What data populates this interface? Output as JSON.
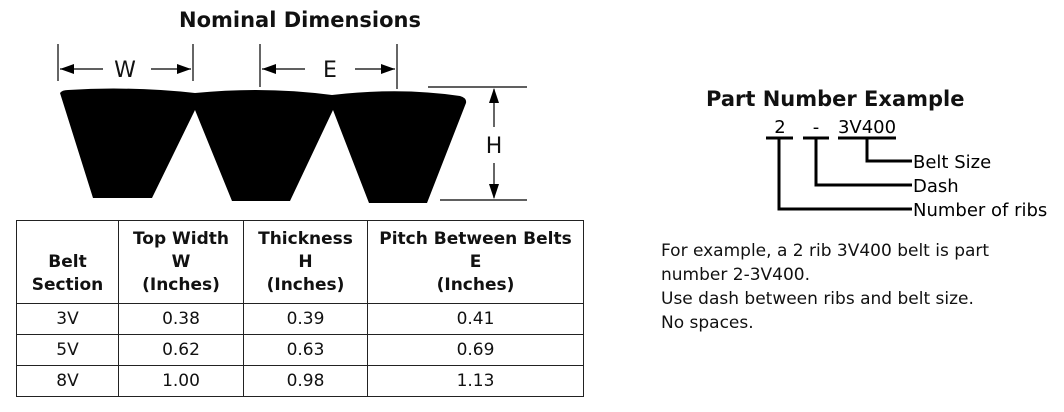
{
  "diagram": {
    "title": "Nominal Dimensions",
    "labels": {
      "w": "W",
      "e": "E",
      "h": "H"
    }
  },
  "table": {
    "headers": [
      [
        "Belt",
        "Section"
      ],
      [
        "Top Width",
        "W",
        "(Inches)"
      ],
      [
        "Thickness",
        "H",
        "(Inches)"
      ],
      [
        "Pitch Between Belts",
        "E",
        "(Inches)"
      ]
    ],
    "rows": [
      [
        "3V",
        "0.38",
        "0.39",
        "0.41"
      ],
      [
        "5V",
        "0.62",
        "0.63",
        "0.69"
      ],
      [
        "8V",
        "1.00",
        "0.98",
        "1.13"
      ]
    ]
  },
  "part_number": {
    "title": "Part Number Example",
    "parts": {
      "ribs": "2",
      "dash": "-",
      "size": "3V400"
    },
    "callouts": {
      "size": "Belt Size",
      "dash": "Dash",
      "ribs": "Number of ribs"
    },
    "description": [
      "For example, a 2 rib 3V400 belt is part",
      "number 2-3V400.",
      "Use dash between ribs and belt size.",
      "No spaces."
    ]
  }
}
